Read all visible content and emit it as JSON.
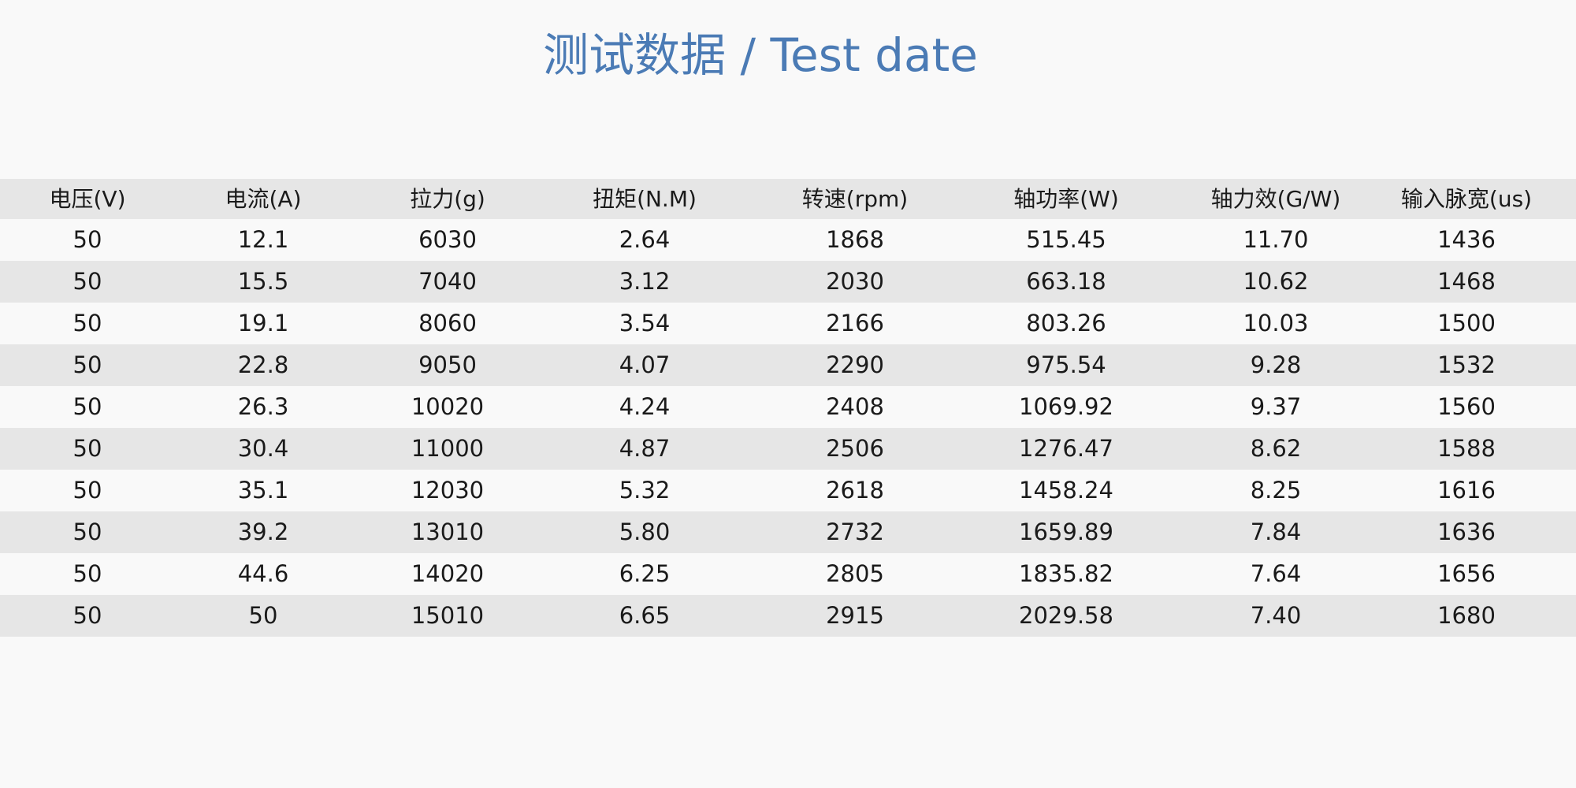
{
  "title": "测试数据 / Test date",
  "table": {
    "headers": [
      "电压(V)",
      "电流(A)",
      "拉力(g)",
      "扭矩(N.M)",
      "转速(rpm)",
      "轴功率(W)",
      "轴力效(G/W)",
      "输入脉宽(us)"
    ],
    "rows": [
      [
        "50",
        "12.1",
        "6030",
        "2.64",
        "1868",
        "515.45",
        "11.70",
        "1436"
      ],
      [
        "50",
        "15.5",
        "7040",
        "3.12",
        "2030",
        "663.18",
        "10.62",
        "1468"
      ],
      [
        "50",
        "19.1",
        "8060",
        "3.54",
        "2166",
        "803.26",
        "10.03",
        "1500"
      ],
      [
        "50",
        "22.8",
        "9050",
        "4.07",
        "2290",
        "975.54",
        "9.28",
        "1532"
      ],
      [
        "50",
        "26.3",
        "10020",
        "4.24",
        "2408",
        "1069.92",
        "9.37",
        "1560"
      ],
      [
        "50",
        "30.4",
        "11000",
        "4.87",
        "2506",
        "1276.47",
        "8.62",
        "1588"
      ],
      [
        "50",
        "35.1",
        "12030",
        "5.32",
        "2618",
        "1458.24",
        "8.25",
        "1616"
      ],
      [
        "50",
        "39.2",
        "13010",
        "5.80",
        "2732",
        "1659.89",
        "7.84",
        "1636"
      ],
      [
        "50",
        "44.6",
        "14020",
        "6.25",
        "2805",
        "1835.82",
        "7.64",
        "1656"
      ],
      [
        "50",
        "50",
        "15010",
        "6.65",
        "2915",
        "2029.58",
        "7.40",
        "1680"
      ]
    ]
  },
  "colors": {
    "title": "#4b7bb5",
    "stripe": "#e6e6e6",
    "background": "#f9f9f9"
  }
}
